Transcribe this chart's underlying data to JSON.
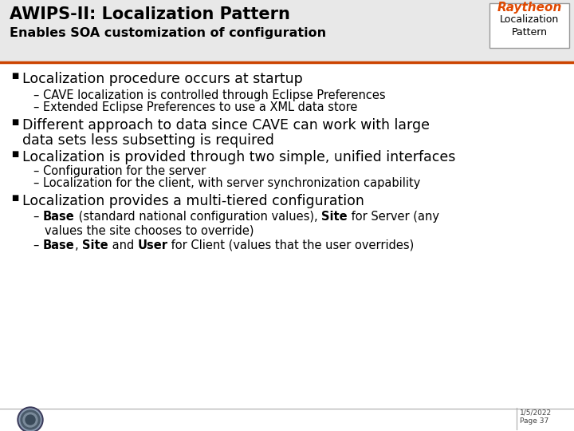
{
  "title_line1": "AWIPS-II: Localization Pattern",
  "title_line2": "Enables SOA customization of configuration",
  "raytheon_text": "Raytheon",
  "badge_line1": "Localization",
  "badge_line2": "Pattern",
  "slide_bg": "#ffffff",
  "header_bg": "#e8e8e8",
  "title_color": "#000000",
  "raytheon_color": "#e04800",
  "divider_color": "#cc4400",
  "bullet_char": "■",
  "bullet_color": "#000000",
  "footer_date": "1/5/2022",
  "footer_page": "Page 37",
  "title_fs": 15,
  "subtitle_fs": 11.5,
  "l1_fs": 12.5,
  "l2_fs": 10.5,
  "raytheon_fs": 11,
  "badge_fs": 9
}
